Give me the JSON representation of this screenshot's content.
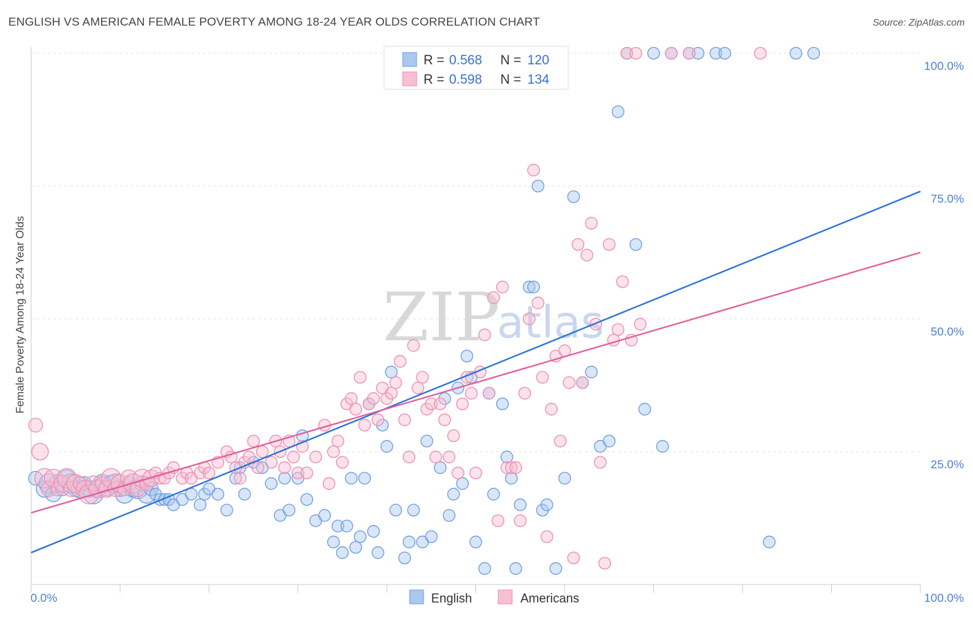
{
  "title": "ENGLISH VS AMERICAN FEMALE POVERTY AMONG 18-24 YEAR OLDS CORRELATION CHART",
  "source": "Source: ZipAtlas.com",
  "watermark": {
    "zip": "ZIP",
    "atlas": "atlas"
  },
  "colors": {
    "english": "#6f9fe0",
    "english_fill": "#aac8f0",
    "american": "#ee8fb0",
    "american_fill": "#f7bfd3",
    "english_line": "#2c72d8",
    "american_line": "#e0609a"
  },
  "chart_data": {
    "type": "scatter",
    "ylabel": "Female Poverty Among 18-24 Year Olds",
    "xlim": [
      0,
      100
    ],
    "ylim": [
      0,
      100
    ],
    "x_tick_labels": [
      "0.0%",
      "100.0%"
    ],
    "y_tick_labels": [
      {
        "value": 25,
        "label": "25.0%"
      },
      {
        "value": 50,
        "label": "50.0%"
      },
      {
        "value": 75,
        "label": "75.0%"
      },
      {
        "value": 100,
        "label": "100.0%"
      }
    ],
    "legend": [
      {
        "r_label": "R =",
        "r": "0.568",
        "n_label": "N =",
        "n": "120"
      },
      {
        "r_label": "R =",
        "r": "0.598",
        "n_label": "N =",
        "n": "134"
      }
    ],
    "series": [
      {
        "name": "English",
        "trend": {
          "x": [
            0,
            100
          ],
          "y": [
            6,
            74
          ]
        },
        "points": [
          [
            0.5,
            20
          ],
          [
            1.5,
            18
          ],
          [
            2,
            19
          ],
          [
            2.5,
            17
          ],
          [
            3,
            19
          ],
          [
            3.5,
            18
          ],
          [
            4,
            20
          ],
          [
            4.5,
            19
          ],
          [
            5,
            18
          ],
          [
            5.5,
            18
          ],
          [
            6,
            19
          ],
          [
            6.5,
            18
          ],
          [
            7,
            17
          ],
          [
            7.5,
            18
          ],
          [
            8,
            19
          ],
          [
            8.5,
            18
          ],
          [
            9,
            19
          ],
          [
            9.5,
            19
          ],
          [
            10,
            18
          ],
          [
            10.5,
            17
          ],
          [
            11,
            19
          ],
          [
            11.5,
            18
          ],
          [
            12,
            18
          ],
          [
            12.5,
            19
          ],
          [
            13,
            17
          ],
          [
            13.5,
            18
          ],
          [
            14,
            17
          ],
          [
            14.5,
            16
          ],
          [
            15,
            16
          ],
          [
            15.5,
            16
          ],
          [
            16,
            15
          ],
          [
            17,
            16
          ],
          [
            18,
            17
          ],
          [
            19,
            15
          ],
          [
            19.5,
            17
          ],
          [
            20,
            18
          ],
          [
            21,
            17
          ],
          [
            22,
            14
          ],
          [
            23,
            20
          ],
          [
            23.5,
            22
          ],
          [
            24,
            17
          ],
          [
            25,
            23
          ],
          [
            26,
            22
          ],
          [
            27,
            19
          ],
          [
            28,
            13
          ],
          [
            28.5,
            20
          ],
          [
            29,
            14
          ],
          [
            30,
            20
          ],
          [
            30.5,
            28
          ],
          [
            31,
            16
          ],
          [
            32,
            12
          ],
          [
            33,
            13
          ],
          [
            34,
            8
          ],
          [
            34.5,
            11
          ],
          [
            35,
            6
          ],
          [
            35.5,
            11
          ],
          [
            36,
            20
          ],
          [
            36.5,
            7
          ],
          [
            37,
            9
          ],
          [
            37.5,
            20
          ],
          [
            38,
            34
          ],
          [
            38.5,
            10
          ],
          [
            39,
            6
          ],
          [
            39.5,
            30
          ],
          [
            40,
            26
          ],
          [
            40.5,
            40
          ],
          [
            41,
            14
          ],
          [
            42,
            5
          ],
          [
            42.5,
            8
          ],
          [
            43,
            14
          ],
          [
            44,
            8
          ],
          [
            44.5,
            27
          ],
          [
            45,
            9
          ],
          [
            46,
            22
          ],
          [
            46.5,
            35
          ],
          [
            47,
            13
          ],
          [
            47.5,
            17
          ],
          [
            48,
            37
          ],
          [
            48.5,
            19
          ],
          [
            49,
            43
          ],
          [
            49.5,
            39
          ],
          [
            50,
            8
          ],
          [
            51,
            3
          ],
          [
            51.5,
            36
          ],
          [
            52,
            17
          ],
          [
            53,
            34
          ],
          [
            53.5,
            24
          ],
          [
            54,
            20
          ],
          [
            54.5,
            3
          ],
          [
            55,
            15
          ],
          [
            56,
            56
          ],
          [
            56.5,
            56
          ],
          [
            57,
            75
          ],
          [
            57.5,
            14
          ],
          [
            58,
            15
          ],
          [
            59,
            3
          ],
          [
            60,
            20
          ],
          [
            61,
            73
          ],
          [
            62,
            38
          ],
          [
            63,
            40
          ],
          [
            64,
            26
          ],
          [
            65,
            27
          ],
          [
            66,
            89
          ],
          [
            67,
            100
          ],
          [
            68,
            64
          ],
          [
            69,
            33
          ],
          [
            70,
            100
          ],
          [
            71,
            26
          ],
          [
            72,
            100
          ],
          [
            74,
            100
          ],
          [
            75,
            100
          ],
          [
            77,
            100
          ],
          [
            78,
            100
          ],
          [
            83,
            8
          ],
          [
            86,
            100
          ],
          [
            88,
            100
          ]
        ]
      },
      {
        "name": "Americans",
        "trend": {
          "x": [
            0,
            100
          ],
          "y": [
            13.5,
            62.5
          ]
        },
        "points": [
          [
            0.5,
            30
          ],
          [
            1,
            25
          ],
          [
            1.5,
            20
          ],
          [
            2,
            18
          ],
          [
            2.5,
            20
          ],
          [
            3,
            18
          ],
          [
            3.5,
            19
          ],
          [
            4,
            20
          ],
          [
            4.5,
            18
          ],
          [
            5,
            19
          ],
          [
            5.5,
            19
          ],
          [
            6,
            18
          ],
          [
            6.5,
            17
          ],
          [
            7,
            19
          ],
          [
            7.5,
            18
          ],
          [
            8,
            19
          ],
          [
            8.5,
            18
          ],
          [
            9,
            20
          ],
          [
            9.5,
            18
          ],
          [
            10,
            19
          ],
          [
            10.5,
            18
          ],
          [
            11,
            20
          ],
          [
            11.5,
            19
          ],
          [
            12,
            18
          ],
          [
            12.5,
            20
          ],
          [
            13,
            19
          ],
          [
            13.5,
            20
          ],
          [
            14,
            21
          ],
          [
            14.5,
            20
          ],
          [
            15,
            20
          ],
          [
            15.5,
            21
          ],
          [
            16,
            22
          ],
          [
            17,
            20
          ],
          [
            17.5,
            21
          ],
          [
            18,
            20
          ],
          [
            19,
            21
          ],
          [
            19.5,
            22
          ],
          [
            20,
            21
          ],
          [
            21,
            23
          ],
          [
            22,
            25
          ],
          [
            22.5,
            24
          ],
          [
            23,
            22
          ],
          [
            23.5,
            20
          ],
          [
            24,
            23
          ],
          [
            24.5,
            24
          ],
          [
            25,
            27
          ],
          [
            25.5,
            22
          ],
          [
            26,
            25
          ],
          [
            27,
            23
          ],
          [
            27.5,
            27
          ],
          [
            28,
            25
          ],
          [
            28.5,
            22
          ],
          [
            29,
            27
          ],
          [
            29.5,
            24
          ],
          [
            30,
            21
          ],
          [
            30.5,
            26
          ],
          [
            31,
            21
          ],
          [
            32,
            24
          ],
          [
            33,
            30
          ],
          [
            33.5,
            19
          ],
          [
            34,
            25
          ],
          [
            34.5,
            27
          ],
          [
            35,
            23
          ],
          [
            35.5,
            34
          ],
          [
            36,
            35
          ],
          [
            36.5,
            33
          ],
          [
            37,
            39
          ],
          [
            37.5,
            30
          ],
          [
            38,
            34
          ],
          [
            38.5,
            35
          ],
          [
            39,
            31
          ],
          [
            39.5,
            37
          ],
          [
            40,
            35
          ],
          [
            40.5,
            36
          ],
          [
            41,
            38
          ],
          [
            41.5,
            42
          ],
          [
            42,
            31
          ],
          [
            42.5,
            24
          ],
          [
            43,
            45
          ],
          [
            43.5,
            37
          ],
          [
            44,
            39
          ],
          [
            44.5,
            33
          ],
          [
            45,
            34
          ],
          [
            45.5,
            24
          ],
          [
            46,
            34
          ],
          [
            46.5,
            31
          ],
          [
            47,
            24
          ],
          [
            47.5,
            28
          ],
          [
            48,
            21
          ],
          [
            48.5,
            34
          ],
          [
            49,
            39
          ],
          [
            49.5,
            36
          ],
          [
            50,
            21
          ],
          [
            50.5,
            40
          ],
          [
            51,
            47
          ],
          [
            51.5,
            36
          ],
          [
            52,
            54
          ],
          [
            52.5,
            12
          ],
          [
            53,
            56
          ],
          [
            53.5,
            22
          ],
          [
            54,
            22
          ],
          [
            54.5,
            22
          ],
          [
            55,
            12
          ],
          [
            55.5,
            36
          ],
          [
            56,
            50
          ],
          [
            56.5,
            78
          ],
          [
            57,
            53
          ],
          [
            57.5,
            39
          ],
          [
            58,
            9
          ],
          [
            58.5,
            33
          ],
          [
            59,
            43
          ],
          [
            59.5,
            27
          ],
          [
            60,
            44
          ],
          [
            60.5,
            38
          ],
          [
            61,
            5
          ],
          [
            61.5,
            64
          ],
          [
            62,
            38
          ],
          [
            62.5,
            62
          ],
          [
            63,
            68
          ],
          [
            63.5,
            49
          ],
          [
            64,
            23
          ],
          [
            64.5,
            4
          ],
          [
            65,
            64
          ],
          [
            65.5,
            46
          ],
          [
            66,
            48
          ],
          [
            66.5,
            57
          ],
          [
            67,
            100
          ],
          [
            67.5,
            46
          ],
          [
            68,
            100
          ],
          [
            68.5,
            49
          ],
          [
            72,
            100
          ],
          [
            74,
            100
          ],
          [
            82,
            100
          ]
        ]
      }
    ]
  },
  "bottom_legend": [
    {
      "label": "English"
    },
    {
      "label": "Americans"
    }
  ]
}
